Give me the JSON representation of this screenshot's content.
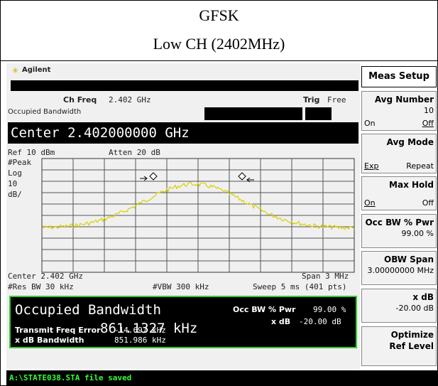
{
  "header": {
    "title": "GFSK",
    "subtitle": "Low CH (2402MHz)"
  },
  "screen": {
    "brand": "Agilent",
    "ch_freq_label": "Ch Freq",
    "ch_freq": "2.402 GHz",
    "trig_label": "Trig",
    "trig": "Free",
    "measurement": "Occupied Bandwidth",
    "center": "Center 2.402000000 GHz",
    "ref": "Ref 10 dBm",
    "atten": "Atten 20 dB",
    "scale": [
      "#Peak",
      "Log",
      "10",
      "dB/"
    ],
    "center_freq": "Center 2.402 GHz",
    "span": "Span 3 MHz",
    "res_bw": "#Res BW 30 kHz",
    "vbw": "#VBW 300 kHz",
    "sweep": "Sweep 5 ms (401 pts)"
  },
  "results": {
    "title": "Occupied Bandwidth",
    "value": "861.1327 kHz",
    "occ_label": "Occ BW % Pwr",
    "occ_value": "99.00 %",
    "xdb_label": "x dB",
    "xdb_value": "-20.00 dB",
    "tfe_label": "Transmit Freq Error",
    "tfe_value": "-14.697 kHz",
    "xbw_label": "x dB Bandwidth",
    "xbw_value": "851.986 kHz"
  },
  "status": "A:\\STATE038.STA file saved",
  "softkeys": {
    "title": "Meas Setup",
    "keys": [
      {
        "label": "Avg Number",
        "value": "10",
        "options": [
          "On",
          "Off"
        ]
      },
      {
        "label": "Avg Mode",
        "options": [
          "Exp",
          "Repeat"
        ]
      },
      {
        "label": "Max Hold",
        "options": [
          "On",
          "Off"
        ]
      },
      {
        "label": "Occ BW % Pwr",
        "value": "99.00 %"
      },
      {
        "label": "OBW Span",
        "value": "3.00000000 MHz"
      },
      {
        "label": "x dB",
        "value": "-20.00 dB"
      },
      {
        "label": "Optimize",
        "value": "Ref Level"
      }
    ]
  }
}
